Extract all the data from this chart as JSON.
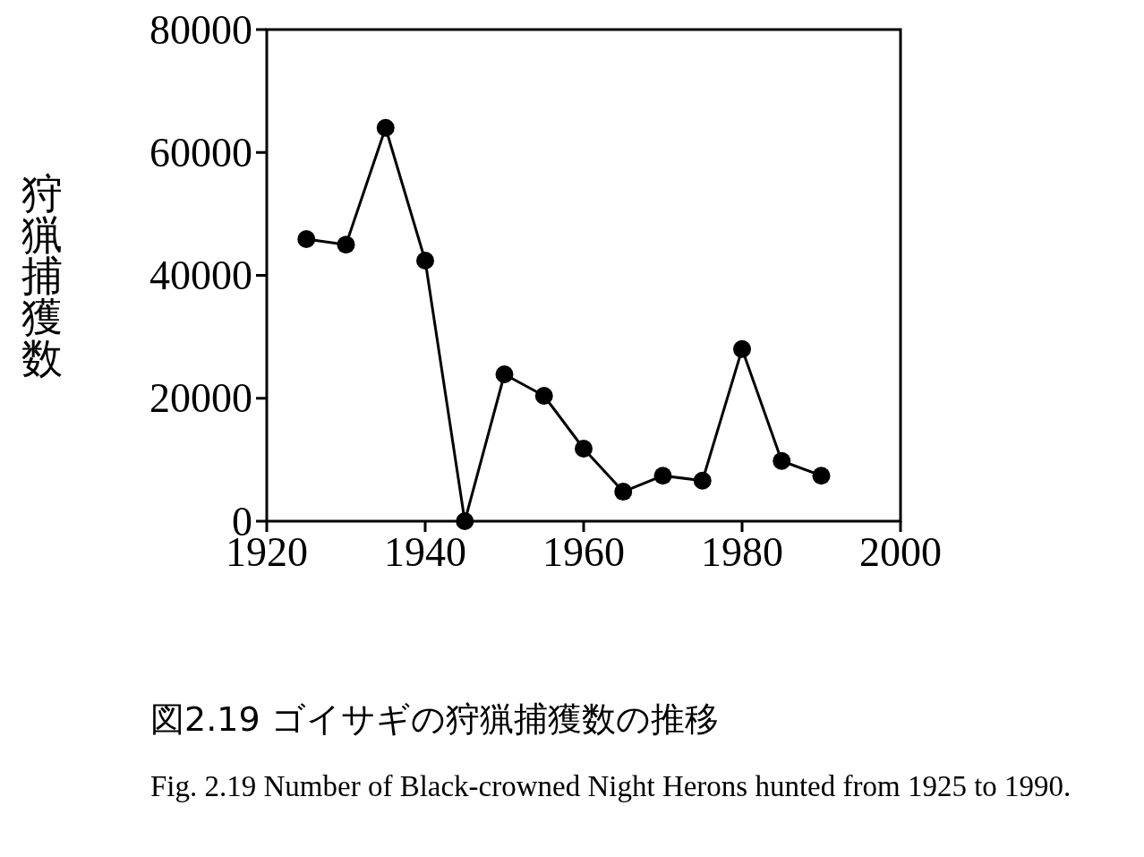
{
  "chart_data": {
    "type": "line",
    "title": "図2.19 ゴイサギの狩猟捕獲数の推移",
    "ylabel": "狩猟捕獲数",
    "annotations": [
      "Fig. 2.19  Number of Black-crowned Night Herons hunted from 1925 to 1990."
    ],
    "x": [
      1925,
      1930,
      1935,
      1940,
      1945,
      1950,
      1955,
      1960,
      1965,
      1970,
      1975,
      1980,
      1985,
      1990
    ],
    "series": [
      {
        "color": "#000000",
        "values": [
          45900,
          45000,
          64000,
          42400,
          0,
          23900,
          20400,
          11800,
          4800,
          7400,
          6600,
          28000,
          9800,
          7400
        ]
      }
    ],
    "xlim": [
      1920,
      2000
    ],
    "xticks": [
      1920,
      1940,
      1960,
      1980,
      2000
    ],
    "ylim": [
      0,
      80000
    ],
    "yticks": [
      0,
      20000,
      40000,
      60000,
      80000
    ],
    "marker": "circle",
    "line_style": "solid",
    "grid": false
  }
}
